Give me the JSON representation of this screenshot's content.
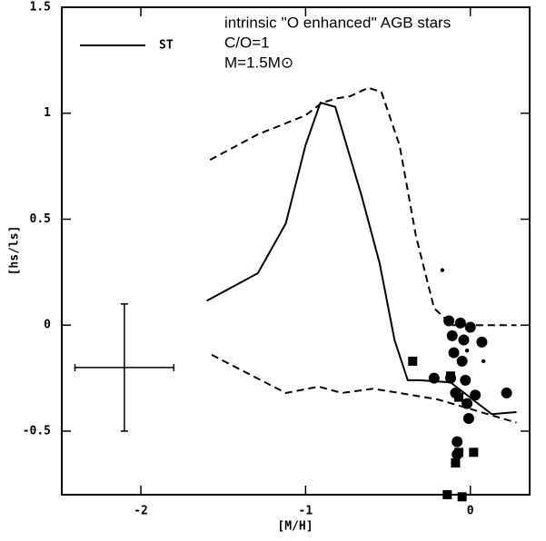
{
  "chart_data": {
    "type": "line",
    "annotations": [
      "intrinsic ''O enhanced'' AGB stars",
      "C/O=1",
      "M=1.5M⊙"
    ],
    "x_label": "[M/H]",
    "y_label": "[hs/ls]",
    "xlim": [
      -2.48,
      0.36
    ],
    "xticks": [
      -2,
      -1,
      0
    ],
    "ylim": [
      -0.8,
      1.5
    ],
    "yticks": [
      -0.5,
      0,
      0.5,
      1,
      1.5
    ],
    "color": "#000000",
    "series": [
      {
        "name": "ST",
        "style": "solid",
        "marker": "none",
        "x": [
          -1.6,
          -1.29,
          -1.12,
          -1.0,
          -0.91,
          -0.82,
          -0.66,
          -0.55,
          -0.46,
          -0.38,
          -0.31,
          -0.12,
          0.13,
          0.28
        ],
        "values": [
          0.115,
          0.245,
          0.48,
          0.85,
          1.05,
          1.03,
          0.61,
          0.29,
          -0.07,
          -0.26,
          -0.26,
          -0.27,
          -0.42,
          -0.41
        ]
      },
      {
        "style": "dashed",
        "marker": "none",
        "x": [
          -1.58,
          -1.29,
          -1.0,
          -0.9,
          -0.81,
          -0.73,
          -0.62,
          -0.54,
          -0.43,
          -0.33,
          -0.22,
          -0.11,
          0.28
        ],
        "values": [
          0.78,
          0.9,
          0.99,
          1.05,
          1.07,
          1.08,
          1.12,
          1.1,
          0.85,
          0.42,
          0.08,
          0,
          0
        ]
      },
      {
        "style": "dashed",
        "marker": "none",
        "x": [
          -1.57,
          -1.12,
          -0.92,
          -0.78,
          -0.59,
          -0.43,
          -0.2,
          0.02,
          0.28
        ],
        "values": [
          -0.14,
          -0.32,
          -0.29,
          -0.32,
          -0.3,
          -0.32,
          -0.35,
          -0.4,
          -0.46
        ]
      },
      {
        "style": "none",
        "marker": "circle",
        "x": [
          -0.13,
          -0.06,
          0,
          -0.11,
          -0.04,
          0.07,
          -0.1,
          -0.05,
          -0.22,
          -0.12,
          -0.03,
          -0.09,
          0.03,
          -0.02,
          -0.01,
          0.22,
          -0.08,
          -0.08
        ],
        "values": [
          0.02,
          0.01,
          -0.01,
          -0.05,
          -0.07,
          -0.08,
          -0.13,
          -0.17,
          -0.25,
          -0.25,
          -0.26,
          -0.32,
          -0.33,
          -0.37,
          -0.44,
          -0.32,
          -0.55,
          -0.61
        ]
      },
      {
        "style": "none",
        "marker": "dot",
        "x": [
          -0.17,
          -0.02,
          0.08
        ],
        "values": [
          0.26,
          -0.12,
          -0.17
        ]
      },
      {
        "style": "none",
        "marker": "square",
        "x": [
          -0.35,
          -0.12,
          -0.07,
          -0.07,
          0.02,
          -0.09,
          -0.14,
          -0.05
        ],
        "values": [
          -0.17,
          -0.24,
          -0.34,
          -0.6,
          -0.6,
          -0.65,
          -0.8,
          -0.81
        ]
      }
    ],
    "errorbar": {
      "x": -2.1,
      "y": -0.2,
      "xerr": 0.3,
      "yerr": 0.3
    }
  }
}
